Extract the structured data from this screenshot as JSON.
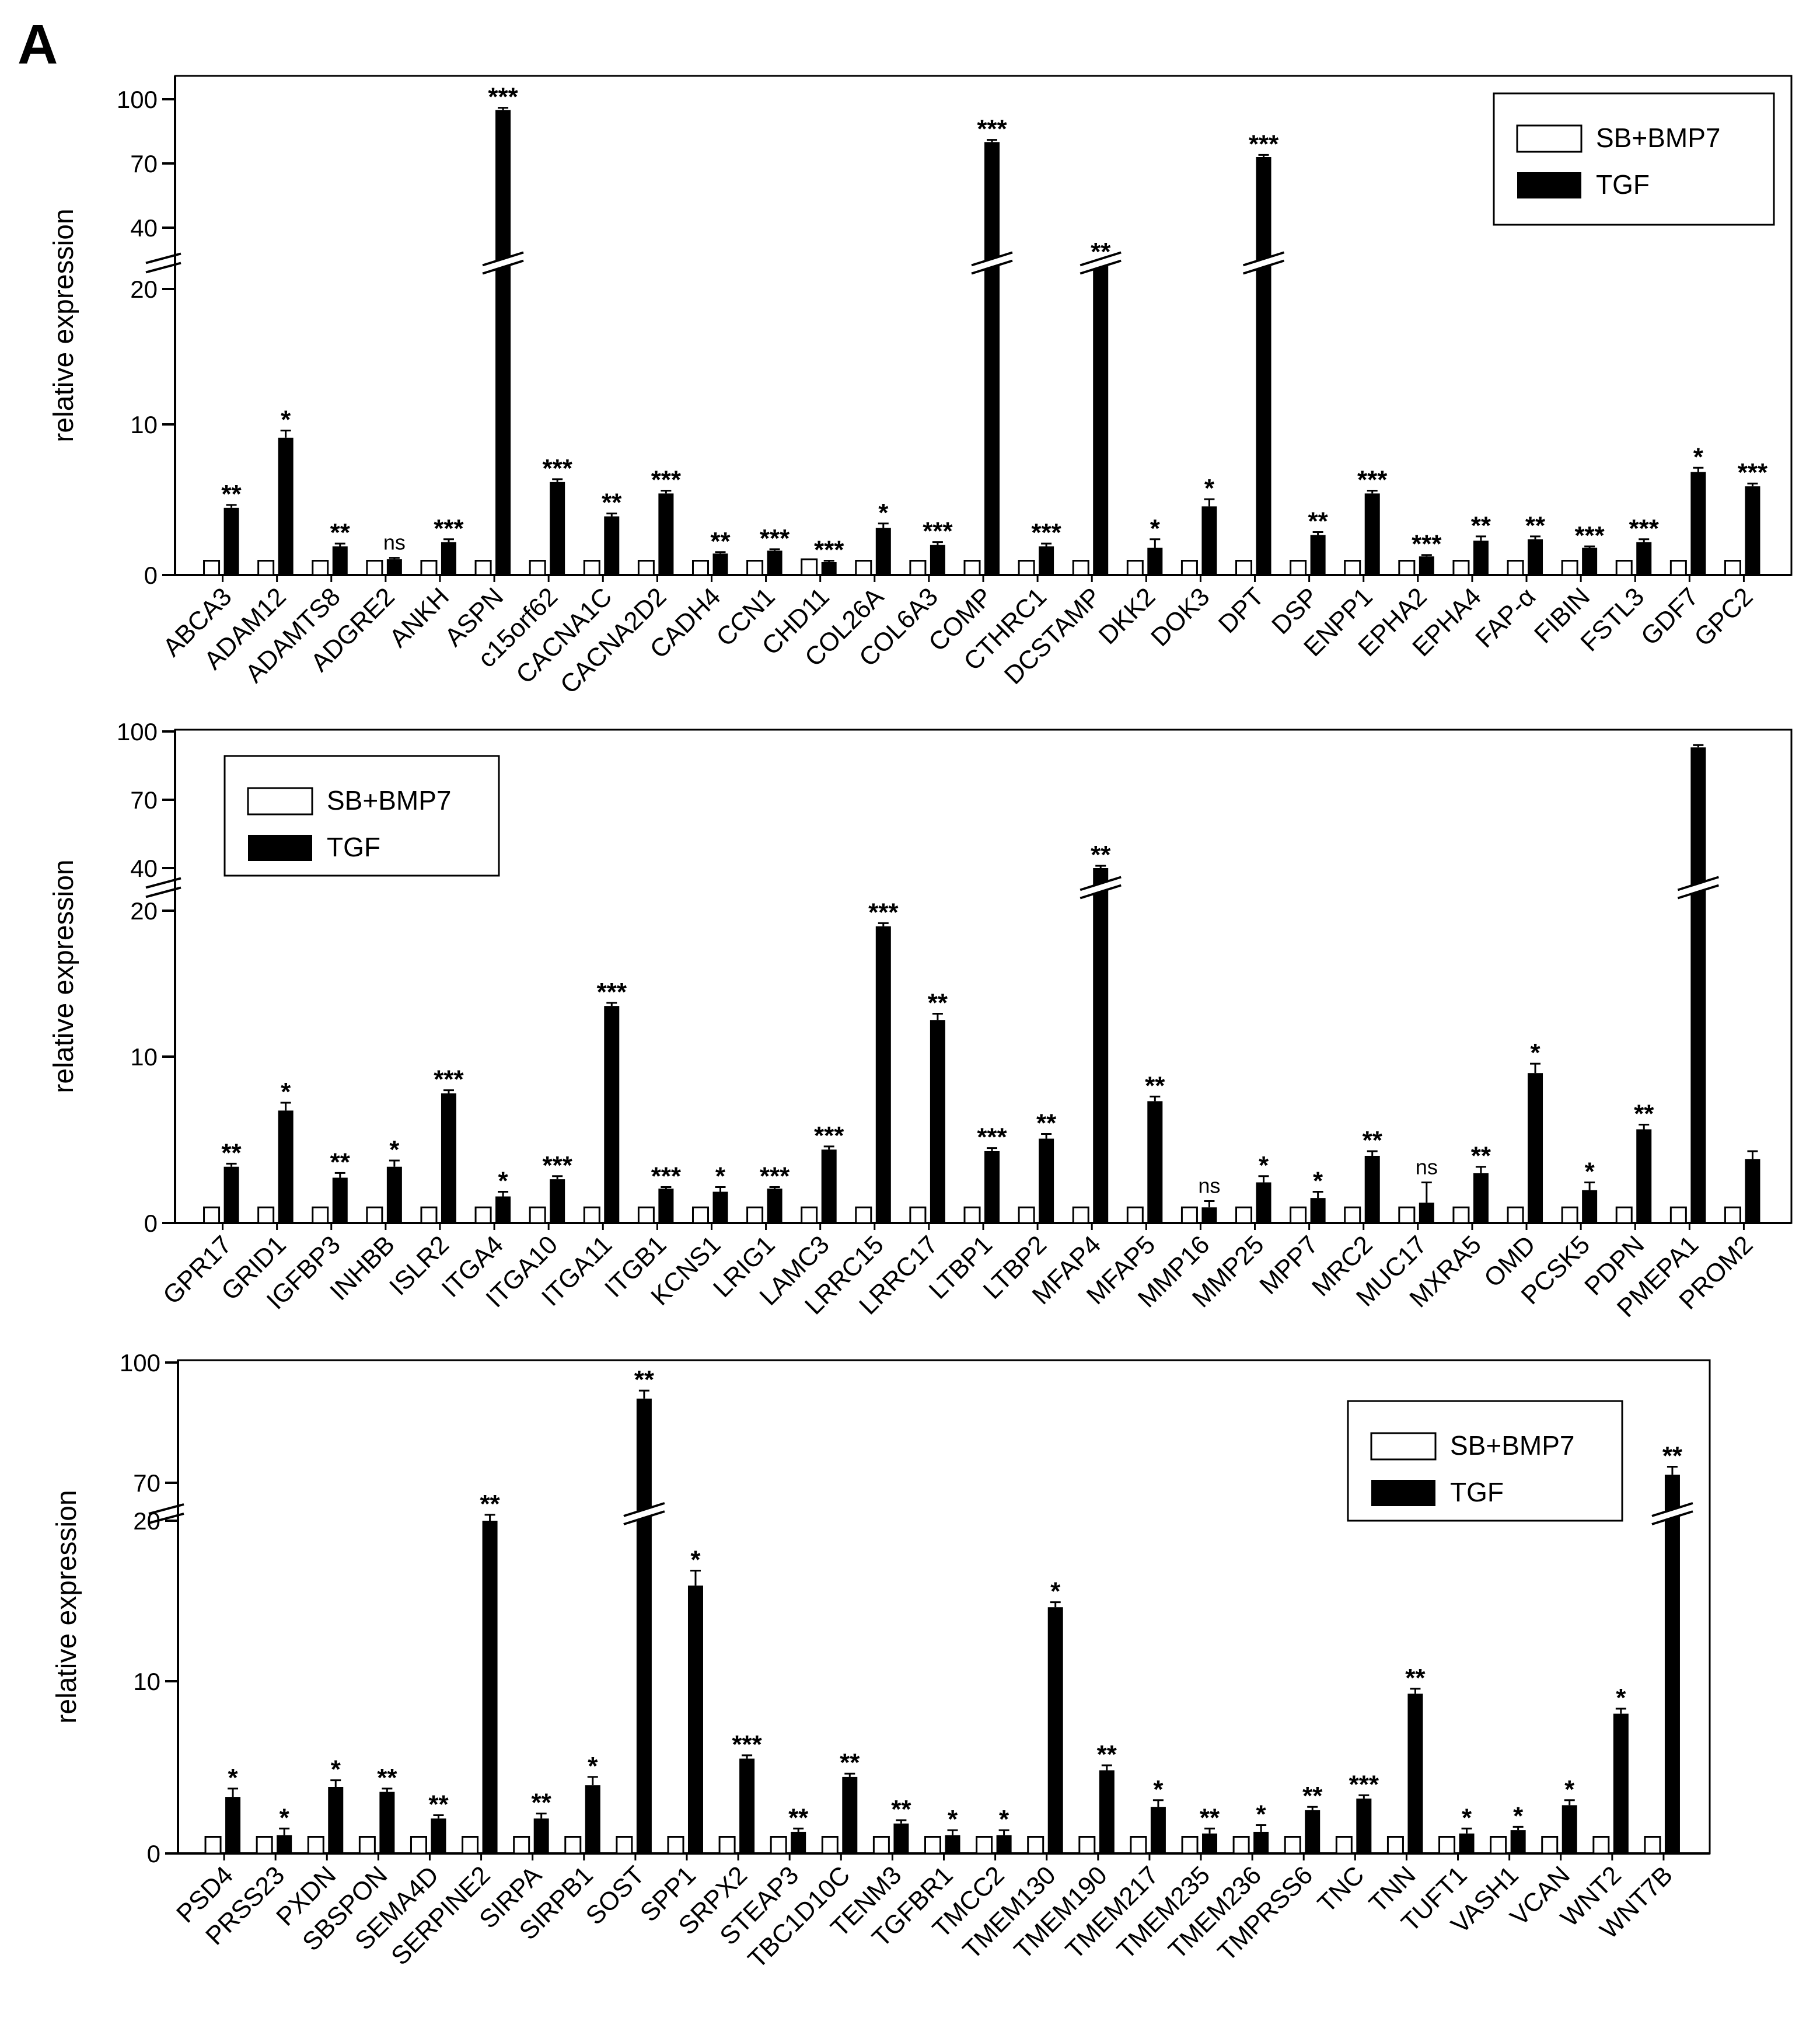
{
  "panel_label": "A",
  "chart_data": [
    {
      "type": "bar",
      "ylabel": "relative expression",
      "yticks": [
        "0",
        "10",
        "20",
        "40",
        "70",
        "100"
      ],
      "legend": {
        "position": "top-right",
        "entries": [
          "SB+BMP7",
          "TGF"
        ]
      },
      "categories": [
        "ABCA3",
        "ADAM12",
        "ADAMTS8",
        "ADGRE2",
        "ANKH",
        "ASPN",
        "c15orf62",
        "CACNA1C",
        "CACNA2D2",
        "CADH4",
        "CCN1",
        "CHD11",
        "COL26A",
        "COL6A3",
        "COMP",
        "CTHRC1",
        "DCSTAMP",
        "DKK2",
        "DOK3",
        "DPT",
        "DSP",
        "ENPP1",
        "EPHA2",
        "EPHA4",
        "FAP-α",
        "FIBIN",
        "FSTL3",
        "GDF7",
        "GPC2"
      ],
      "series": [
        {
          "name": "SB+BMP7",
          "values": [
            1,
            1,
            1,
            1,
            1,
            1,
            1,
            1,
            1,
            1,
            1,
            1.1,
            1,
            1,
            1,
            1,
            1,
            1,
            1,
            1,
            1,
            1,
            1,
            1,
            1,
            1,
            1,
            1,
            1
          ]
        },
        {
          "name": "TGF",
          "values": [
            4.7,
            9.6,
            2,
            1.1,
            2.3,
            95,
            6.5,
            4.1,
            5.7,
            1.5,
            1.7,
            0.9,
            3.3,
            2.1,
            80,
            2,
            23,
            1.9,
            4.8,
            73,
            2.8,
            5.7,
            1.3,
            2.4,
            2.5,
            1.9,
            2.3,
            7.2,
            6.2
          ]
        }
      ],
      "errors": [
        0.2,
        0.5,
        0.2,
        0.1,
        0.2,
        1,
        0.2,
        0.2,
        0.2,
        0.1,
        0.1,
        0.1,
        0.3,
        0.2,
        1,
        0.2,
        1,
        0.6,
        0.5,
        1,
        0.2,
        0.2,
        0.1,
        0.3,
        0.2,
        0.1,
        0.2,
        0.3,
        0.2
      ],
      "significance": [
        "**",
        "*",
        "**",
        "ns",
        "***",
        "***",
        "***",
        "**",
        "***",
        "**",
        "***",
        "***",
        "*",
        "***",
        "***",
        "***",
        "**",
        "*",
        "*",
        "***",
        "**",
        "***",
        "***",
        "**",
        "**",
        "***",
        "***",
        "*",
        "***"
      ]
    },
    {
      "type": "bar",
      "ylabel": "relative expression",
      "yticks": [
        "0",
        "10",
        "20",
        "40",
        "70",
        "100"
      ],
      "legend": {
        "position": "top-left",
        "entries": [
          "SB+BMP7",
          "TGF"
        ]
      },
      "categories": [
        "GPR17",
        "GRID1",
        "IGFBP3",
        "INHBB",
        "ISLR2",
        "ITGA4",
        "ITGA10",
        "ITGA11",
        "ITGB1",
        "KCNS1",
        "LRIG1",
        "LAMC3",
        "LRRC15",
        "LRRC17",
        "LTBP1",
        "LTBP2",
        "MFAP4",
        "MFAP5",
        "MMP16",
        "MMP25",
        "MPP7",
        "MRC2",
        "MUC17",
        "MXRA5",
        "OMD",
        "PCSK5",
        "PDPN",
        "PMEPA1",
        "PROM2"
      ],
      "series": [
        {
          "name": "SB+BMP7",
          "values": [
            1,
            1,
            1,
            1,
            1,
            1,
            1,
            1,
            1,
            1,
            1,
            1,
            1,
            1,
            1,
            1,
            1,
            1,
            1,
            1,
            1,
            1,
            1,
            1,
            1,
            1,
            1,
            1,
            1
          ]
        },
        {
          "name": "TGF",
          "values": [
            3.6,
            7.2,
            2.9,
            3.6,
            8.3,
            1.7,
            2.8,
            13.9,
            2.2,
            2,
            2.2,
            4.7,
            19,
            13,
            4.6,
            5.4,
            40,
            7.8,
            1,
            2.6,
            1.6,
            4.3,
            1.3,
            3.2,
            9.6,
            2.1,
            6,
            93,
            4.1
          ]
        }
      ],
      "errors": [
        0.2,
        0.5,
        0.3,
        0.4,
        0.2,
        0.3,
        0.2,
        0.2,
        0.1,
        0.3,
        0.1,
        0.2,
        0.2,
        0.4,
        0.2,
        0.3,
        1,
        0.3,
        0.4,
        0.4,
        0.4,
        0.3,
        1.3,
        0.4,
        0.6,
        0.5,
        0.3,
        1,
        0.5
      ],
      "significance": [
        "**",
        "*",
        "**",
        "*",
        "***",
        "*",
        "***",
        "***",
        "***",
        "*",
        "***",
        "***",
        "***",
        "**",
        "***",
        "**",
        "**",
        "**",
        "ns",
        "*",
        "*",
        "**",
        "ns",
        "**",
        "*",
        "*",
        "**",
        "",
        ""
      ]
    },
    {
      "type": "bar",
      "ylabel": "relative expression",
      "yticks": [
        "0",
        "10",
        "20",
        "70",
        "100"
      ],
      "legend": {
        "position": "top-right",
        "entries": [
          "SB+BMP7",
          "TGF"
        ]
      },
      "categories": [
        "PSD4",
        "PRSS23",
        "PXDN",
        "SBSPON",
        "SEMA4D",
        "SERPINE2",
        "SIRPA",
        "SIRPB1",
        "SOST",
        "SPP1",
        "SRPX2",
        "STEAP3",
        "TBC1D10C",
        "TENM3",
        "TGFBR1",
        "TMCC2",
        "TMEM130",
        "TMEM190",
        "TMEM217",
        "TMEM235",
        "TMEM236",
        "TMPRSS6",
        "TNC",
        "TNN",
        "TUFT1",
        "VASH1",
        "VCAN",
        "WNT2",
        "WNT7B"
      ],
      "series": [
        {
          "name": "SB+BMP7",
          "values": [
            1,
            1,
            1,
            1,
            1,
            1,
            1,
            1,
            1,
            1,
            1,
            1,
            1,
            1,
            1,
            1,
            1,
            1,
            1,
            1,
            1,
            1,
            1,
            1,
            1,
            1,
            1,
            1,
            1
          ]
        },
        {
          "name": "TGF",
          "values": [
            3.4,
            1.1,
            4,
            3.7,
            2.1,
            20,
            2.1,
            4.1,
            91,
            16.1,
            5.7,
            1.3,
            4.6,
            1.8,
            1.1,
            1.1,
            14.8,
            5,
            2.8,
            1.2,
            1.3,
            2.6,
            3.3,
            9.6,
            1.2,
            1.4,
            2.9,
            8.4,
            72
          ]
        }
      ],
      "errors": [
        0.5,
        0.4,
        0.4,
        0.2,
        0.2,
        0.2,
        0.3,
        0.5,
        2,
        0.9,
        0.2,
        0.2,
        0.2,
        0.2,
        0.3,
        0.3,
        0.3,
        0.3,
        0.4,
        0.3,
        0.4,
        0.2,
        0.2,
        0.3,
        0.3,
        0.2,
        0.3,
        0.3,
        2
      ],
      "significance": [
        "*",
        "*",
        "*",
        "**",
        "**",
        "**",
        "**",
        "*",
        "**",
        "*",
        "***",
        "**",
        "**",
        "**",
        "*",
        "*",
        "*",
        "**",
        "*",
        "**",
        "*",
        "**",
        "***",
        "**",
        "*",
        "*",
        "*",
        "*",
        "**"
      ]
    }
  ]
}
